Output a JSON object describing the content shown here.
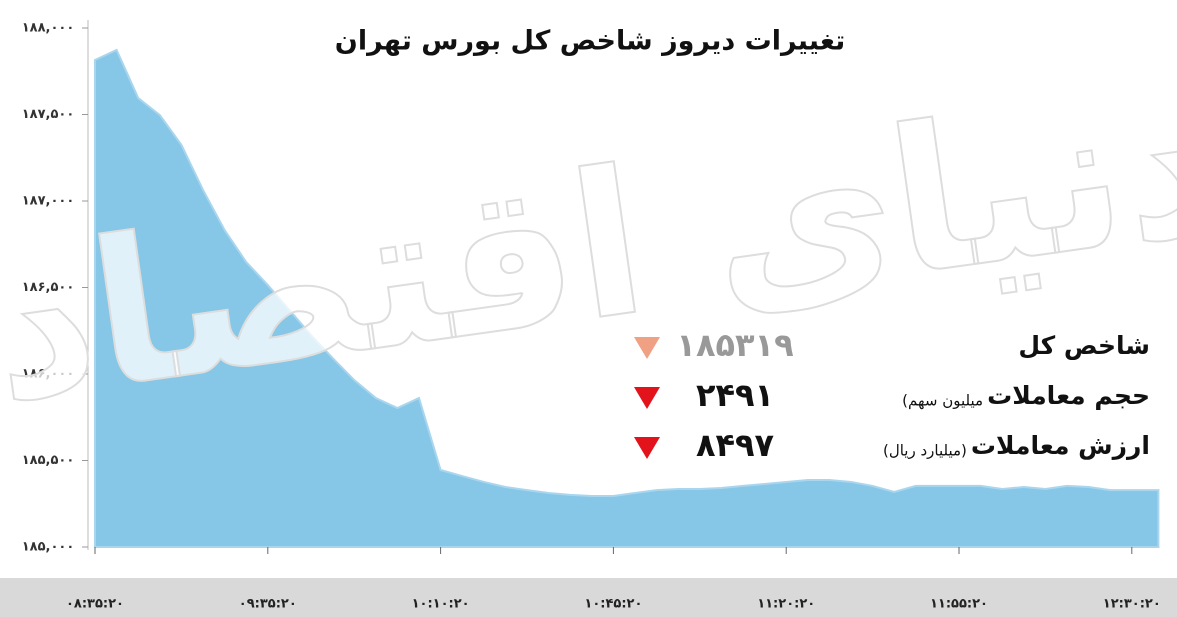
{
  "chart_data": {
    "type": "area",
    "title": "تغییرات دیروز شاخص کل بورس تهران",
    "watermark": "دنیای اقتصاد",
    "color": "#86c6e6",
    "categories": [
      "۰۸:۳۵:۲۰",
      null,
      null,
      null,
      null,
      null,
      null,
      null,
      "۰۹:۳۵:۲۰",
      null,
      null,
      null,
      null,
      null,
      null,
      null,
      "۱۰:۱۰:۲۰",
      null,
      null,
      null,
      null,
      null,
      null,
      null,
      "۱۰:۴۵:۲۰",
      null,
      null,
      null,
      null,
      null,
      null,
      null,
      "۱۱:۲۰:۲۰",
      null,
      null,
      null,
      null,
      null,
      null,
      null,
      "۱۱:۵۵:۲۰",
      null,
      null,
      null,
      null,
      null,
      null,
      null,
      "۱۲:۳۰:۲۰",
      null
    ],
    "values": [
      187815,
      187873,
      187595,
      187497,
      187324,
      187064,
      186832,
      186647,
      186514,
      186370,
      186225,
      186092,
      185965,
      185861,
      185803,
      185861,
      185445,
      185410,
      185376,
      185347,
      185329,
      185312,
      185301,
      185295,
      185295,
      185312,
      185329,
      185335,
      185335,
      185341,
      185353,
      185364,
      185376,
      185387,
      185387,
      185376,
      185353,
      185318,
      185353,
      185353,
      185353,
      185353,
      185335,
      185347,
      185335,
      185353,
      185347,
      185329,
      185329,
      185329
    ],
    "ylim": [
      185000,
      188000
    ],
    "yticks": [
      {
        "value": 185000,
        "label": "۱۸۵,۰۰۰"
      },
      {
        "value": 185500,
        "label": "۱۸۵,۵۰۰"
      },
      {
        "value": 186000,
        "label": "۱۸۶,۰۰۰"
      },
      {
        "value": 186500,
        "label": "۱۸۶,۵۰۰"
      },
      {
        "value": 187000,
        "label": "۱۸۷,۰۰۰"
      },
      {
        "value": 187500,
        "label": "۱۸۷,۵۰۰"
      },
      {
        "value": 188000,
        "label": "۱۸۸,۰۰۰"
      }
    ],
    "summary": [
      {
        "label": "شاخص کل",
        "value": "۱۸۵۳۱۹",
        "color": "#f0a083"
      },
      {
        "label": "حجم معاملات",
        "unit": "(میلیون سهم",
        "value": "۲۴۹۱",
        "color": "#e3131c"
      },
      {
        "label": "ارزش معاملات",
        "unit": "(میلیارد ریال)",
        "value": "۸۴۹۷",
        "color": "#e3131c"
      }
    ]
  }
}
